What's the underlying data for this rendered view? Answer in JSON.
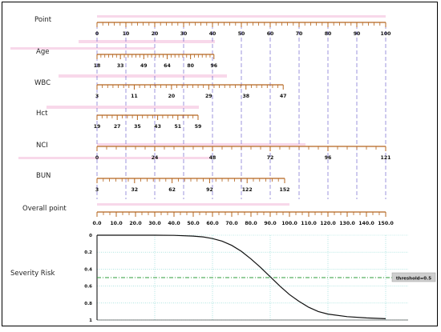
{
  "chart_data": {
    "type": "nomogram",
    "scales": [
      {
        "key": "point",
        "label": "Point",
        "min": 0,
        "max": 100,
        "labels": [
          "0",
          "10",
          "20",
          "30",
          "40",
          "50",
          "60",
          "70",
          "80",
          "90",
          "100"
        ],
        "minor_per_major": 5
      },
      {
        "key": "age",
        "label": "Age",
        "min": 18,
        "max": 96,
        "labels": [
          "18",
          "33",
          "49",
          "64",
          "80",
          "96"
        ],
        "minor_per_major": 6
      },
      {
        "key": "wbc",
        "label": "WBC",
        "min": 3,
        "max": 47,
        "labels": [
          "3",
          "11",
          "20",
          "29",
          "38",
          "47"
        ],
        "minor_per_major": 7
      },
      {
        "key": "hct",
        "label": "Hct",
        "min": 19,
        "max": 59,
        "labels": [
          "19",
          "27",
          "35",
          "43",
          "51",
          "59"
        ],
        "minor_per_major": 4
      },
      {
        "key": "nci",
        "label": "NCI",
        "min": 0,
        "max": 121,
        "labels": [
          "0",
          "24",
          "48",
          "72",
          "96",
          "121"
        ],
        "minor_per_major": 6
      },
      {
        "key": "bun",
        "label": "BUN",
        "min": 3,
        "max": 152,
        "labels": [
          "3",
          "32",
          "62",
          "92",
          "122",
          "152"
        ],
        "minor_per_major": 6
      },
      {
        "key": "overall",
        "label": "Overall point",
        "min": 0,
        "max": 150,
        "labels": [
          "0.0",
          "10.0",
          "20.0",
          "30.0",
          "40.0",
          "50.0",
          "60.0",
          "70.0",
          "80.0",
          "90.0",
          "100.0",
          "110.0",
          "120.0",
          "130.0",
          "140.0",
          "150.0"
        ],
        "minor_per_major": 3
      }
    ],
    "risk_panel": {
      "label": "Severity Risk",
      "y_ticks": [
        "0",
        "0.2",
        "0.4",
        "0.6",
        "0.8",
        "1"
      ],
      "ylim": [
        0,
        1
      ],
      "x_range": [
        0,
        150
      ],
      "x_gridlines": [
        30,
        60,
        90,
        120,
        150
      ],
      "curve": {
        "x": [
          0,
          10,
          20,
          30,
          40,
          50,
          55,
          60,
          65,
          70,
          75,
          80,
          85,
          90,
          95,
          100,
          105,
          110,
          115,
          120,
          130,
          140,
          150
        ],
        "y": [
          0,
          0,
          0,
          0,
          0.002,
          0.01,
          0.02,
          0.04,
          0.07,
          0.12,
          0.19,
          0.28,
          0.38,
          0.49,
          0.6,
          0.7,
          0.78,
          0.85,
          0.9,
          0.93,
          0.96,
          0.975,
          0.985
        ]
      },
      "threshold": {
        "value": 0.5,
        "label": "threshold=0.5"
      }
    },
    "reference_lines": [
      0,
      10,
      20,
      30,
      40,
      50,
      60,
      70,
      80,
      90,
      100
    ]
  },
  "colors": {
    "axis": "#b5651d",
    "ref_line": "#5b4fc8",
    "highlight": "#f2b8d8",
    "grid": "#7fd6d0",
    "threshold": "#2e9c3a",
    "curve": "#111111"
  }
}
